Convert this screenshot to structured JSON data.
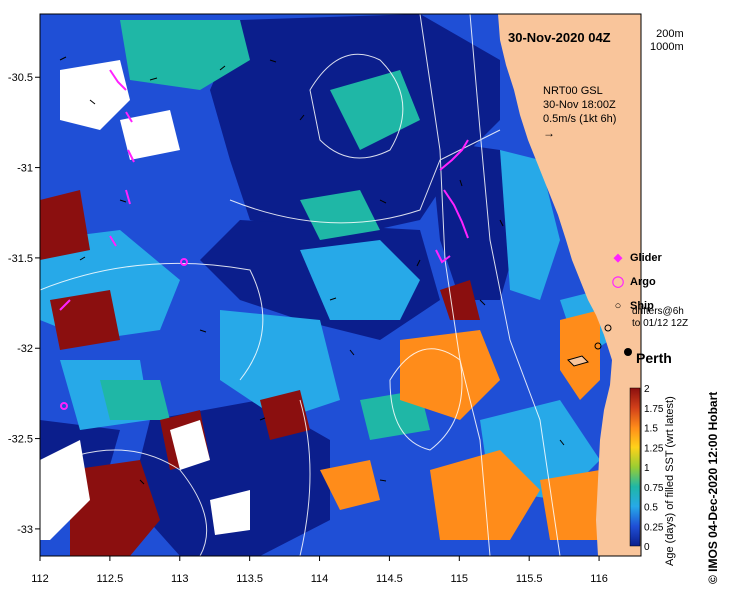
{
  "title": "30-Nov-2020 04Z",
  "scale": {
    "line1": "200m",
    "line2": "1000m"
  },
  "nrt": {
    "line1": "NRT00 GSL",
    "line2": "30-Nov 18:00Z",
    "line3": "0.5m/s (1kt 6h)"
  },
  "legend": {
    "glider": "Glider",
    "argo": "Argo",
    "ship": "Ship"
  },
  "drifters": {
    "line1": "drifters@6h",
    "line2": "to 01/12 12Z"
  },
  "city": "Perth",
  "axes": {
    "lon_ticks": [
      "112",
      "112.5",
      "113",
      "113.5",
      "114",
      "114.5",
      "115",
      "115.5",
      "116"
    ],
    "lat_ticks": [
      "-30.5",
      "-31",
      "-31.5",
      "-32",
      "-32.5",
      "-33"
    ]
  },
  "colorbar": {
    "label": "Age (days) of filled SST (wrt latest)",
    "ticks": [
      "0",
      "0.25",
      "0.5",
      "0.75",
      "1",
      "1.25",
      "1.5",
      "1.75",
      "2"
    ],
    "range": [
      0,
      2
    ]
  },
  "credit": "© IMOS 04-Dec-2020 12:00 Hobart",
  "colors": {
    "land": "#f9c59b",
    "navy": "#0b1e8c",
    "blue": "#1f4fd6",
    "sky": "#27a9e8",
    "teal": "#1fb7a6",
    "orange": "#ff8c1a",
    "brown": "#8b0f0f",
    "white": "#ffffff",
    "magenta": "#ff22ff"
  }
}
